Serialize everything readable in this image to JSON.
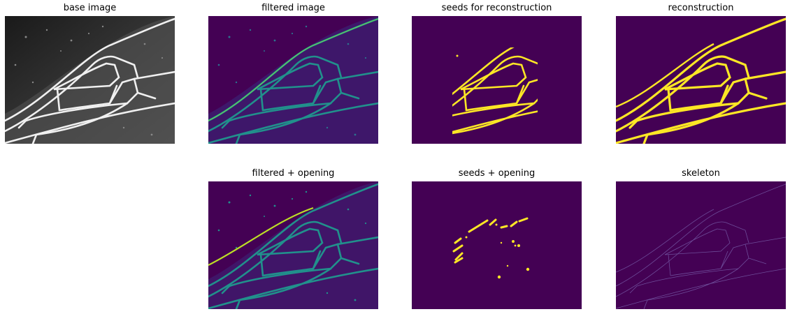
{
  "figure": {
    "panels": [
      {
        "id": "base",
        "title": "base image"
      },
      {
        "id": "filtered",
        "title": "filtered image"
      },
      {
        "id": "seeds",
        "title": "seeds for reconstruction"
      },
      {
        "id": "reconstruction",
        "title": "reconstruction"
      },
      {
        "id": "filtered_opening",
        "title": "filtered + opening"
      },
      {
        "id": "seeds_opening",
        "title": "seeds + opening"
      },
      {
        "id": "skeleton",
        "title": "skeleton"
      }
    ]
  },
  "colors": {
    "background": "#440154",
    "viridis_mid": "#21918c",
    "viridis_high": "#fde725",
    "gray_bg": "#2b2b2b",
    "gray_vein": "#e6e6e6"
  }
}
